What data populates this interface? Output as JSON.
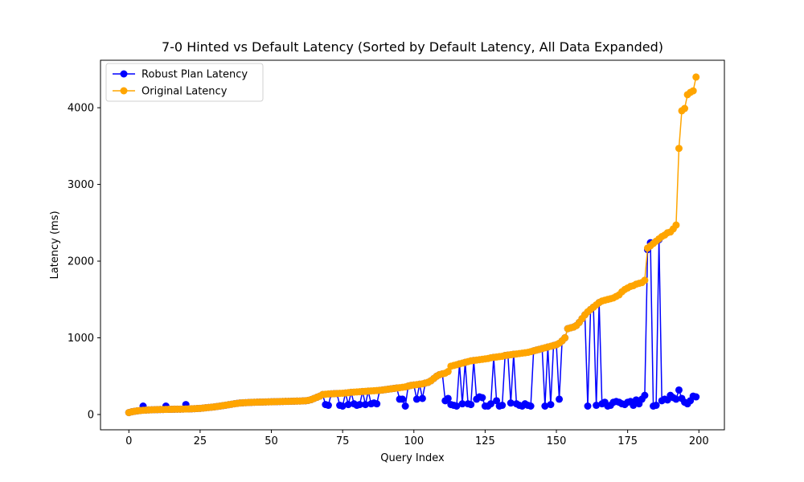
{
  "chart_data": {
    "type": "line",
    "title": "7-0 Hinted vs Default Latency (Sorted by Default Latency, All Data Expanded)",
    "x_label": "Query Index",
    "y_label": "Latency (ms)",
    "x": [
      0,
      1,
      2,
      3,
      4,
      5,
      6,
      7,
      8,
      9,
      10,
      11,
      12,
      13,
      14,
      15,
      16,
      17,
      18,
      19,
      20,
      21,
      22,
      23,
      24,
      25,
      26,
      27,
      28,
      29,
      30,
      31,
      32,
      33,
      34,
      35,
      36,
      37,
      38,
      39,
      40,
      41,
      42,
      43,
      44,
      45,
      46,
      47,
      48,
      49,
      50,
      51,
      52,
      53,
      54,
      55,
      56,
      57,
      58,
      59,
      60,
      61,
      62,
      63,
      64,
      65,
      66,
      67,
      68,
      69,
      70,
      71,
      72,
      73,
      74,
      75,
      76,
      77,
      78,
      79,
      80,
      81,
      82,
      83,
      84,
      85,
      86,
      87,
      88,
      89,
      90,
      91,
      92,
      93,
      94,
      95,
      96,
      97,
      98,
      99,
      100,
      101,
      102,
      103,
      104,
      105,
      106,
      107,
      108,
      109,
      110,
      111,
      112,
      113,
      114,
      115,
      116,
      117,
      118,
      119,
      120,
      121,
      122,
      123,
      124,
      125,
      126,
      127,
      128,
      129,
      130,
      131,
      132,
      133,
      134,
      135,
      136,
      137,
      138,
      139,
      140,
      141,
      142,
      143,
      144,
      145,
      146,
      147,
      148,
      149,
      150,
      151,
      152,
      153,
      154,
      155,
      156,
      157,
      158,
      159,
      160,
      161,
      162,
      163,
      164,
      165,
      166,
      167,
      168,
      169,
      170,
      171,
      172,
      173,
      174,
      175,
      176,
      177,
      178,
      179,
      180,
      181,
      182,
      183,
      184,
      185,
      186,
      187,
      188,
      189,
      190,
      191,
      192,
      193,
      194,
      195,
      196,
      197,
      198,
      199
    ],
    "series": [
      {
        "name": "Robust Plan Latency",
        "color": "#0000ff",
        "values": [
          25,
          35,
          42,
          48,
          52,
          110,
          58,
          60,
          62,
          63,
          64,
          65,
          66,
          110,
          68,
          68,
          69,
          70,
          70,
          71,
          130,
          73,
          74,
          76,
          78,
          80,
          84,
          88,
          92,
          96,
          100,
          105,
          110,
          116,
          122,
          128,
          134,
          140,
          145,
          150,
          153,
          155,
          157,
          158,
          160,
          161,
          162,
          163,
          164,
          165,
          166,
          167,
          168,
          169,
          170,
          171,
          172,
          173,
          174,
          175,
          176,
          178,
          180,
          185,
          195,
          210,
          225,
          240,
          260,
          130,
          120,
          270,
          272,
          274,
          120,
          110,
          280,
          130,
          290,
          140,
          120,
          130,
          300,
          130,
          305,
          140,
          150,
          140,
          316,
          320,
          325,
          330,
          335,
          340,
          345,
          200,
          200,
          110,
          370,
          380,
          385,
          200,
          395,
          210,
          410,
          420,
          440,
          470,
          500,
          520,
          530,
          180,
          210,
          130,
          120,
          110,
          660,
          140,
          680,
          140,
          130,
          705,
          200,
          230,
          220,
          110,
          110,
          140,
          745,
          180,
          110,
          120,
          770,
          775,
          150,
          785,
          140,
          120,
          110,
          140,
          120,
          110,
          830,
          840,
          850,
          860,
          110,
          880,
          130,
          900,
          910,
          200,
          960,
          1000,
          1120,
          1130,
          1140,
          1160,
          1200,
          1250,
          1300,
          110,
          1370,
          1400,
          120,
          1460,
          140,
          160,
          110,
          120,
          160,
          170,
          160,
          140,
          130,
          160,
          170,
          120,
          190,
          140,
          200,
          250,
          2150,
          2240,
          110,
          120,
          2280,
          180,
          200,
          190,
          250,
          220,
          200,
          320,
          210,
          160,
          140,
          180,
          240,
          230
        ]
      },
      {
        "name": "Original Latency",
        "color": "#ffa500",
        "values": [
          25,
          35,
          42,
          48,
          52,
          55,
          58,
          60,
          62,
          63,
          64,
          65,
          66,
          67,
          68,
          68,
          69,
          70,
          70,
          71,
          72,
          73,
          74,
          76,
          78,
          80,
          84,
          88,
          92,
          96,
          100,
          105,
          110,
          116,
          122,
          128,
          134,
          140,
          145,
          150,
          153,
          155,
          157,
          158,
          160,
          161,
          162,
          163,
          164,
          165,
          166,
          167,
          168,
          169,
          170,
          171,
          172,
          173,
          174,
          175,
          176,
          178,
          180,
          185,
          195,
          210,
          225,
          240,
          260,
          265,
          268,
          270,
          272,
          274,
          276,
          278,
          280,
          285,
          290,
          292,
          295,
          297,
          300,
          302,
          305,
          308,
          310,
          313,
          316,
          320,
          325,
          330,
          335,
          340,
          345,
          350,
          355,
          360,
          370,
          380,
          385,
          390,
          395,
          400,
          410,
          420,
          440,
          470,
          500,
          520,
          530,
          540,
          560,
          630,
          640,
          650,
          660,
          670,
          680,
          690,
          700,
          705,
          710,
          715,
          720,
          725,
          730,
          740,
          745,
          750,
          755,
          760,
          770,
          775,
          780,
          785,
          790,
          795,
          800,
          805,
          810,
          820,
          830,
          840,
          850,
          860,
          870,
          880,
          890,
          900,
          910,
          930,
          960,
          1000,
          1120,
          1130,
          1140,
          1160,
          1200,
          1250,
          1300,
          1340,
          1370,
          1400,
          1430,
          1460,
          1480,
          1490,
          1500,
          1510,
          1520,
          1540,
          1560,
          1600,
          1630,
          1650,
          1670,
          1680,
          1700,
          1710,
          1720,
          1750,
          2170,
          2200,
          2230,
          2260,
          2290,
          2320,
          2340,
          2370,
          2380,
          2420,
          2470,
          3470,
          3960,
          3990,
          4170,
          4200,
          4220,
          4400
        ]
      }
    ],
    "xlim": [
      -9.95,
      208.95
    ],
    "xticks": [
      0,
      25,
      50,
      75,
      100,
      125,
      150,
      175,
      200
    ],
    "ylim": [
      -199,
      4619
    ],
    "yticks": [
      0,
      1000,
      2000,
      3000,
      4000
    ],
    "legend": "upper left"
  }
}
